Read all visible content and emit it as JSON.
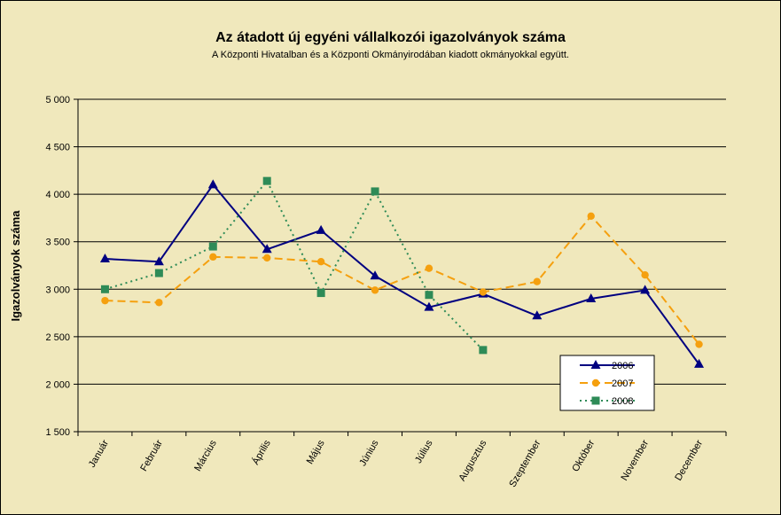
{
  "chart_data": {
    "type": "line",
    "title": "Az átadott új egyéni vállalkozói  igazolványok száma",
    "subtitle": "A Központi Hivatalban és a Központi Okmányirodában kiadott okmányokkal együtt.",
    "xlabel": "",
    "ylabel": "Igazolványok száma",
    "ylim": [
      1500,
      5000
    ],
    "yticks": [
      1500,
      2000,
      2500,
      3000,
      3500,
      4000,
      4500,
      5000
    ],
    "ytick_labels": [
      "1 500",
      "2 000",
      "2 500",
      "3 000",
      "3 500",
      "4 000",
      "4 500",
      "5 000"
    ],
    "grid": "horizontal",
    "legend_position": "bottom-right",
    "categories": [
      "Január",
      "Február",
      "Március",
      "Április",
      "Május",
      "Június",
      "Július",
      "Augusztus",
      "Szeptember",
      "Október",
      "November",
      "December"
    ],
    "series": [
      {
        "name": "2006",
        "color": "#000080",
        "line_style": "solid",
        "marker": "triangle",
        "values": [
          3320,
          3290,
          4100,
          3420,
          3620,
          3140,
          2810,
          2950,
          2720,
          2900,
          2990,
          2210
        ]
      },
      {
        "name": "2007",
        "color": "#F5A00F",
        "line_style": "dashed",
        "marker": "circle",
        "values": [
          2880,
          2860,
          3340,
          3330,
          3290,
          2990,
          3220,
          2970,
          3080,
          3770,
          3150,
          2420
        ]
      },
      {
        "name": "2008",
        "color": "#2E8B57",
        "line_style": "dotted",
        "marker": "square",
        "values": [
          3000,
          3170,
          3450,
          4140,
          2960,
          4030,
          2940,
          2360,
          null,
          null,
          null,
          null
        ]
      }
    ]
  }
}
